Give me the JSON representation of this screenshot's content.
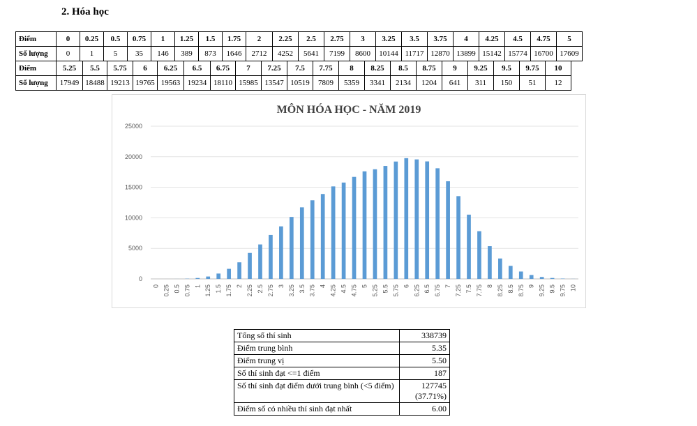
{
  "heading": "2.  Hóa học",
  "score_table": {
    "row_label_score": "Điểm",
    "row_label_count": "Số lượng",
    "part1": {
      "scores": [
        "0",
        "0.25",
        "0.5",
        "0.75",
        "1",
        "1.25",
        "1.5",
        "1.75",
        "2",
        "2.25",
        "2.5",
        "2.75",
        "3",
        "3.25",
        "3.5",
        "3.75",
        "4",
        "4.25",
        "4.5",
        "4.75",
        "5"
      ],
      "counts": [
        "0",
        "1",
        "5",
        "35",
        "146",
        "389",
        "873",
        "1646",
        "2712",
        "4252",
        "5641",
        "7199",
        "8600",
        "10144",
        "11717",
        "12870",
        "13899",
        "15142",
        "15774",
        "16700",
        "17609"
      ]
    },
    "part2": {
      "scores": [
        "5.25",
        "5.5",
        "5.75",
        "6",
        "6.25",
        "6.5",
        "6.75",
        "7",
        "7.25",
        "7.5",
        "7.75",
        "8",
        "8.25",
        "8.5",
        "8.75",
        "9",
        "9.25",
        "9.5",
        "9.75",
        "10"
      ],
      "counts": [
        "17949",
        "18488",
        "19213",
        "19765",
        "19563",
        "19234",
        "18110",
        "15985",
        "13547",
        "10519",
        "7809",
        "5359",
        "3341",
        "2134",
        "1204",
        "641",
        "311",
        "150",
        "51",
        "12"
      ]
    }
  },
  "chart_data": {
    "type": "bar",
    "title": "MÔN HÓA HỌC - NĂM 2019",
    "xlabel": "",
    "ylabel": "",
    "ylim": [
      0,
      25000
    ],
    "yticks": [
      0,
      5000,
      10000,
      15000,
      20000,
      25000
    ],
    "grid": true,
    "legend": "none",
    "bar_color": "#5b9bd5",
    "categories": [
      "0",
      "0.25",
      "0.5",
      "0.75",
      "1",
      "1.25",
      "1.5",
      "1.75",
      "2",
      "2.25",
      "2.5",
      "2.75",
      "3",
      "3.25",
      "3.5",
      "3.75",
      "4",
      "4.25",
      "4.5",
      "4.75",
      "5",
      "5.25",
      "5.5",
      "5.75",
      "6",
      "6.25",
      "6.5",
      "6.75",
      "7",
      "7.25",
      "7.5",
      "7.75",
      "8",
      "8.25",
      "8.5",
      "8.75",
      "9",
      "9.25",
      "9.5",
      "9.75",
      "10"
    ],
    "values": [
      0,
      1,
      5,
      35,
      146,
      389,
      873,
      1646,
      2712,
      4252,
      5641,
      7199,
      8600,
      10144,
      11717,
      12870,
      13899,
      15142,
      15774,
      16700,
      17609,
      17949,
      18488,
      19213,
      19765,
      19563,
      19234,
      18110,
      15985,
      13547,
      10519,
      7809,
      5359,
      3341,
      2134,
      1204,
      641,
      311,
      150,
      51,
      12
    ]
  },
  "stats": [
    {
      "label": "Tổng số thí sinh",
      "value": "338739"
    },
    {
      "label": "Điểm trung bình",
      "value": "5.35"
    },
    {
      "label": "Điểm trung vị",
      "value": "5.50"
    },
    {
      "label": "Số thí sinh đạt <=1 điểm",
      "value": "187"
    },
    {
      "label": "Số thí sinh đạt điểm dưới trung bình (<5 điểm)",
      "value": "127745",
      "value2": "(37.71%)"
    },
    {
      "label": "Điểm số có nhiều thí sinh đạt nhất",
      "value": "6.00"
    }
  ]
}
